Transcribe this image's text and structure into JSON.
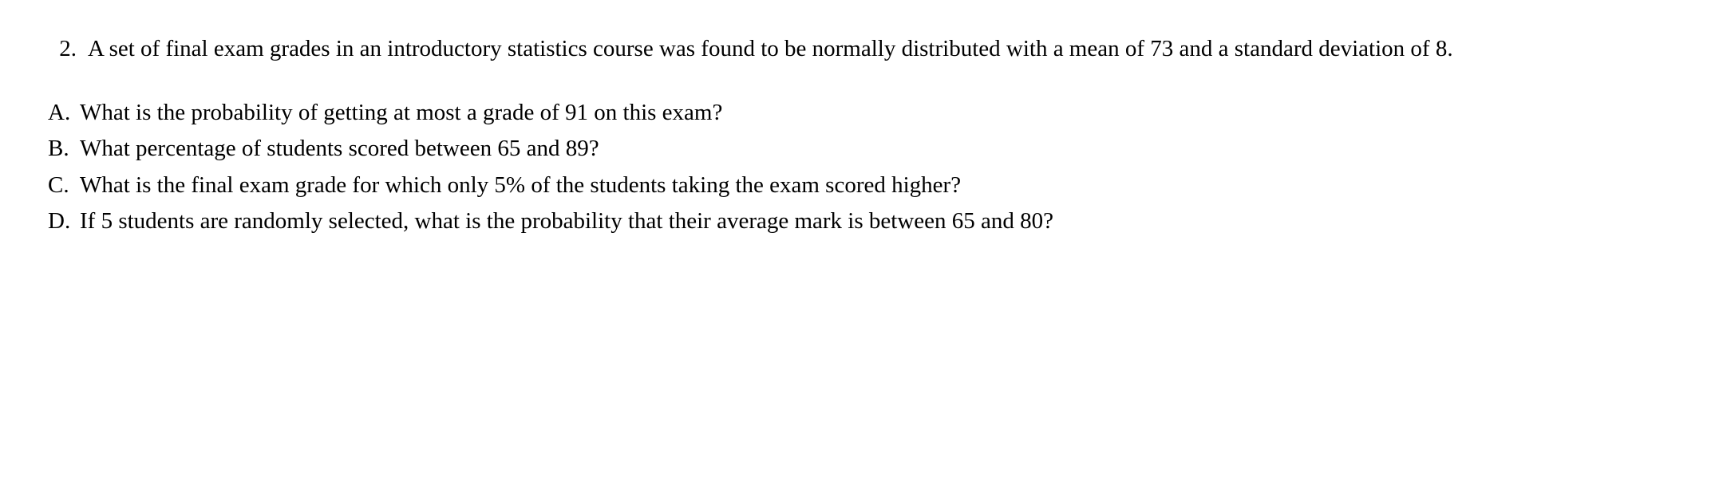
{
  "question": {
    "number": "2.",
    "text": "A set of final exam grades in an introductory statistics course was found to be normally distributed with a mean of 73 and a standard deviation of 8."
  },
  "subquestions": [
    {
      "label": "A.",
      "text": "What is the probability of getting at most a grade of 91 on this exam?"
    },
    {
      "label": "B.",
      "text": "What percentage of students scored between 65 and 89?"
    },
    {
      "label": "C.",
      "text": "What is the final exam grade for which only 5% of the students taking the exam scored higher?"
    },
    {
      "label": "D.",
      "text": "If 5 students are randomly selected, what is the probability that their average mark is between 65 and 80?"
    }
  ],
  "style": {
    "background_color": "#ffffff",
    "text_color": "#000000",
    "font_family": "Times New Roman",
    "font_size_pt": 22
  }
}
